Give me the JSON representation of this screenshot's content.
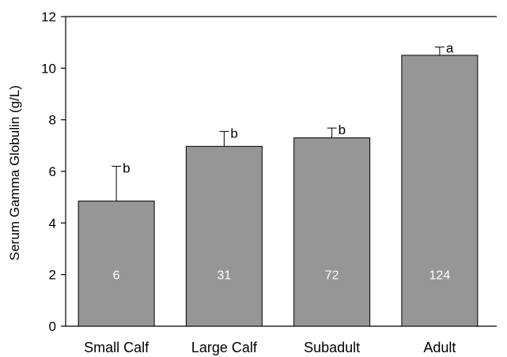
{
  "chart_data": {
    "type": "bar",
    "title": "",
    "xlabel": "",
    "ylabel": "Serum Gamma Globulin (g/L)",
    "ylim": [
      0,
      12
    ],
    "yticks": [
      0,
      2,
      4,
      6,
      8,
      10,
      12
    ],
    "grid": false,
    "categories": [
      "Small Calf",
      "Large Calf",
      "Subadult",
      "Adult"
    ],
    "values": [
      4.85,
      6.97,
      7.3,
      10.5
    ],
    "error_upper": [
      6.2,
      7.55,
      7.68,
      10.82
    ],
    "significance_labels": [
      "b",
      "b",
      "b",
      "a"
    ],
    "sample_sizes": [
      "6",
      "31",
      "72",
      "124"
    ],
    "colors": {
      "bar": "#969696",
      "bar_edge": "#000000",
      "n_label": "#ffffff",
      "axis": "#000000"
    }
  }
}
